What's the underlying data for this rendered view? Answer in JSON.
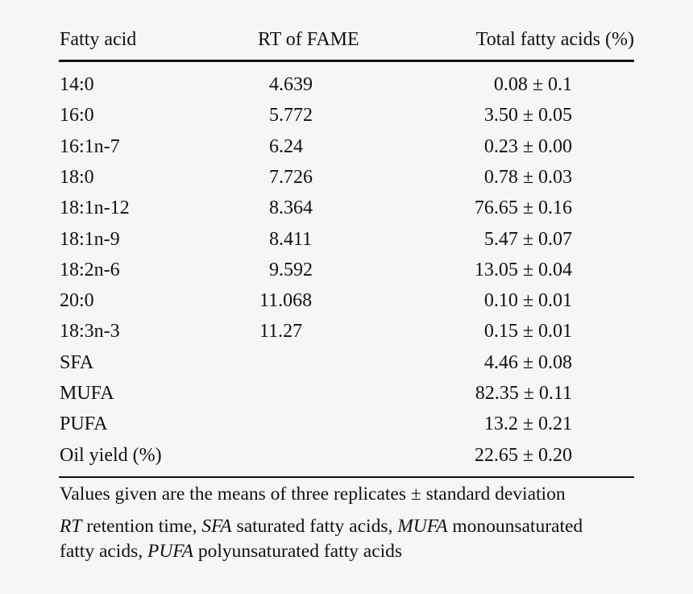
{
  "table": {
    "headers": {
      "fatty_acid": "Fatty acid",
      "rt": "RT of FAME",
      "total": "Total fatty acids (%)"
    },
    "rows": [
      {
        "fatty_acid": "14:0",
        "rt": "4.639",
        "total": "0.08 ± 0.1"
      },
      {
        "fatty_acid": "16:0",
        "rt": "5.772",
        "total": "3.50 ± 0.05"
      },
      {
        "fatty_acid": "16:1n-7",
        "rt": "6.24",
        "total": "0.23 ± 0.00"
      },
      {
        "fatty_acid": "18:0",
        "rt": "7.726",
        "total": "0.78 ± 0.03"
      },
      {
        "fatty_acid": "18:1n-12",
        "rt": "8.364",
        "total": "76.65 ± 0.16"
      },
      {
        "fatty_acid": "18:1n-9",
        "rt": "8.411",
        "total": "5.47 ± 0.07"
      },
      {
        "fatty_acid": "18:2n-6",
        "rt": "9.592",
        "total": "13.05 ± 0.04"
      },
      {
        "fatty_acid": "20:0",
        "rt": "11.068",
        "total": "0.10 ± 0.01"
      },
      {
        "fatty_acid": "18:3n-3",
        "rt": "11.27",
        "total": "0.15 ± 0.01"
      },
      {
        "fatty_acid": "SFA",
        "rt": "",
        "total": "4.46 ± 0.08"
      },
      {
        "fatty_acid": "MUFA",
        "rt": "",
        "total": "82.35 ± 0.11"
      },
      {
        "fatty_acid": "PUFA",
        "rt": "",
        "total": "13.2 ± 0.21"
      },
      {
        "fatty_acid": "Oil yield (%)",
        "rt": "",
        "total": "22.65 ± 0.20"
      }
    ]
  },
  "footnotes": {
    "line1": "Values given are the means of three replicates ± standard deviation",
    "abbr": [
      {
        "term": "RT",
        "def": " retention time, "
      },
      {
        "term": "SFA",
        "def": " saturated fatty acids, "
      },
      {
        "term": "MUFA",
        "def": " monounsaturated"
      }
    ],
    "line3_prefix": "fatty acids, ",
    "line3_term": "PUFA",
    "line3_def": " polyunsaturated fatty acids"
  }
}
